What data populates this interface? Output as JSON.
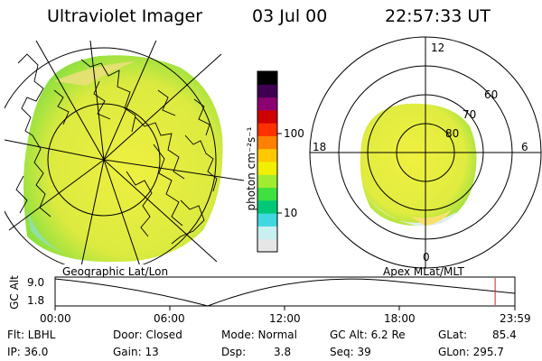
{
  "header": {
    "instrument": "Ultraviolet Imager",
    "date": "03 Jul 00",
    "time": "22:57:33 UT"
  },
  "colorbar": {
    "unit_label": "photon cm⁻²s⁻¹",
    "ticks": [
      "100",
      "10"
    ],
    "scale": "log",
    "colors": [
      "#e6e6e6",
      "#c8f0f0",
      "#40d8e0",
      "#00c878",
      "#40e040",
      "#a0ec30",
      "#f0f000",
      "#ffc800",
      "#ff8000",
      "#ff3000",
      "#d00000",
      "#8c0070",
      "#400050",
      "#000000"
    ]
  },
  "left_map": {
    "label": "Geographic Lat/Lon",
    "fill_color": "#e0ec40",
    "edge_color": "#7fdc40"
  },
  "right_map": {
    "label": "Apex MLat/MLT",
    "mlt_labels": [
      "12",
      "18",
      "6",
      "0"
    ],
    "lat_labels": [
      "60",
      "70",
      "80"
    ],
    "oval_color": "#e6ec3c"
  },
  "altitude_plot": {
    "ylabel": "GC Alt",
    "yticks": [
      "9.0",
      "1.8"
    ],
    "xticks": [
      "00:00",
      "06:00",
      "12:00",
      "18:00",
      "23:59"
    ],
    "marker_color": "#d02020",
    "marker_fraction": 0.957
  },
  "info": {
    "flt": "Flt: LBHL",
    "ip": "IP: 36.0",
    "door": "Door: Closed",
    "gain": "Gain: 13",
    "mode": "Mode: Normal",
    "dsp": "Dsp:",
    "dsp_val": "3.8",
    "gc_alt": "GC Alt: 6.2 Re",
    "seq": "Seq: 39",
    "glat": "GLat:",
    "glat_val": "85.4",
    "glon": "GLon: 295.7"
  }
}
